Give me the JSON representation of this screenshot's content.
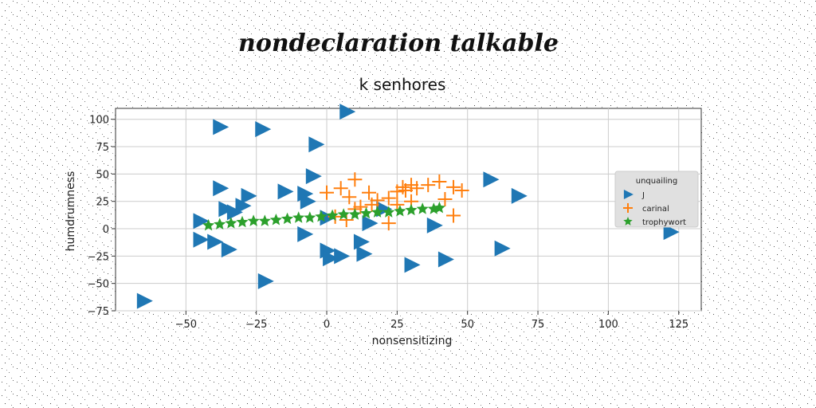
{
  "page": {
    "title": "nondeclaration talkable"
  },
  "chart_data": {
    "type": "scatter",
    "title": "k senhores",
    "xlabel": "nonsensitizing",
    "ylabel": "humdrumness",
    "xlim": [
      -75,
      133
    ],
    "ylim": [
      -75,
      110
    ],
    "xticks": [
      -50,
      -25,
      0,
      25,
      50,
      75,
      100,
      125
    ],
    "yticks": [
      -75,
      -50,
      -25,
      0,
      25,
      50,
      75,
      100
    ],
    "xtick_labels": [
      "−50",
      "−25",
      "0",
      "25",
      "50",
      "75",
      "100",
      "125"
    ],
    "ytick_labels": [
      "−75",
      "−50",
      "−25",
      "0",
      "25",
      "50",
      "75",
      "100"
    ],
    "grid": true,
    "legend": {
      "title": "unquailing",
      "placement": "right"
    },
    "series": [
      {
        "name": "J",
        "marker": "triangle-right",
        "color": "#1f77b4",
        "points": [
          [
            7,
            107
          ],
          [
            -38,
            93
          ],
          [
            -23,
            91
          ],
          [
            -4,
            77
          ],
          [
            -5,
            48
          ],
          [
            -38,
            37
          ],
          [
            -28,
            30
          ],
          [
            -15,
            34
          ],
          [
            -8,
            32
          ],
          [
            -7,
            25
          ],
          [
            -45,
            7
          ],
          [
            -45,
            -10
          ],
          [
            -40,
            -12
          ],
          [
            -35,
            -19
          ],
          [
            -36,
            18
          ],
          [
            -33,
            15
          ],
          [
            -30,
            21
          ],
          [
            -22,
            -48
          ],
          [
            -65,
            -66
          ],
          [
            -8,
            -5
          ],
          [
            0,
            -20
          ],
          [
            1,
            -27
          ],
          [
            5,
            -25
          ],
          [
            12,
            -12
          ],
          [
            13,
            -23
          ],
          [
            30,
            -33
          ],
          [
            42,
            -28
          ],
          [
            38,
            3
          ],
          [
            58,
            45
          ],
          [
            68,
            30
          ],
          [
            62,
            -18
          ],
          [
            122,
            -3
          ],
          [
            0,
            10
          ],
          [
            15,
            5
          ],
          [
            20,
            18
          ]
        ]
      },
      {
        "name": "carinal",
        "marker": "plus",
        "color": "#ff7f0e",
        "points": [
          [
            0,
            33
          ],
          [
            5,
            37
          ],
          [
            10,
            45
          ],
          [
            15,
            33
          ],
          [
            18,
            26
          ],
          [
            22,
            28
          ],
          [
            25,
            34
          ],
          [
            27,
            38
          ],
          [
            28,
            35
          ],
          [
            30,
            40
          ],
          [
            32,
            37
          ],
          [
            36,
            40
          ],
          [
            40,
            43
          ],
          [
            45,
            38
          ],
          [
            48,
            35
          ],
          [
            42,
            27
          ],
          [
            45,
            12
          ],
          [
            10,
            18
          ],
          [
            12,
            20
          ],
          [
            3,
            11
          ],
          [
            7,
            8
          ],
          [
            22,
            5
          ],
          [
            25,
            22
          ],
          [
            30,
            25
          ],
          [
            16,
            22
          ],
          [
            8,
            29
          ]
        ]
      },
      {
        "name": "trophywort",
        "marker": "star",
        "color": "#2ca02c",
        "points": [
          [
            -42,
            3
          ],
          [
            -38,
            4
          ],
          [
            -34,
            5
          ],
          [
            -30,
            6
          ],
          [
            -26,
            7
          ],
          [
            -22,
            7
          ],
          [
            -18,
            8
          ],
          [
            -14,
            9
          ],
          [
            -10,
            10
          ],
          [
            -6,
            10
          ],
          [
            -2,
            11
          ],
          [
            2,
            12
          ],
          [
            6,
            13
          ],
          [
            10,
            13
          ],
          [
            14,
            14
          ],
          [
            18,
            15
          ],
          [
            22,
            15
          ],
          [
            26,
            16
          ],
          [
            30,
            17
          ],
          [
            34,
            18
          ],
          [
            38,
            18
          ],
          [
            40,
            19
          ]
        ]
      }
    ]
  }
}
